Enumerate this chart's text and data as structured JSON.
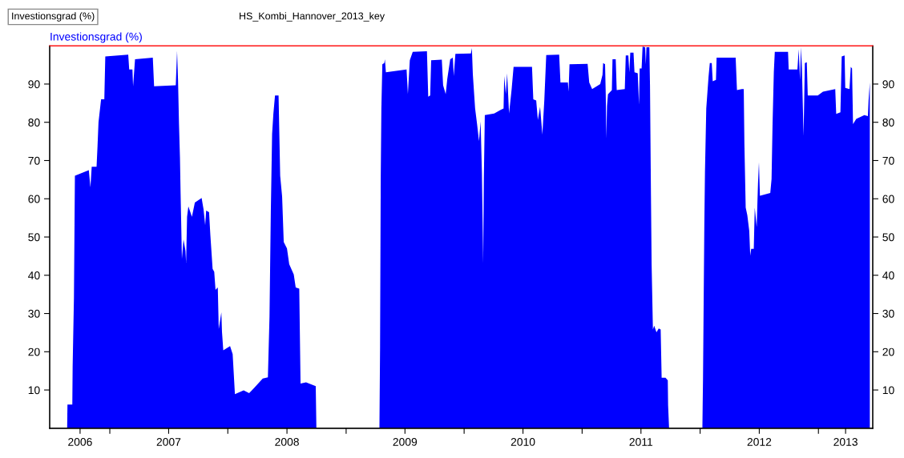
{
  "chart_data": {
    "type": "area",
    "title": "HS_Kombi_Hannover_2013_key",
    "ylabel": "Investionsgrad (%)",
    "annotations": [
      "Investionsgrad (%)"
    ],
    "x": [
      "2006-08-22",
      "2006-08-23",
      "2006-09-07",
      "2006-09-08",
      "2006-09-12",
      "2006-09-15",
      "2006-10-28",
      "2006-11-02",
      "2006-11-06",
      "2006-11-21",
      "2006-11-24",
      "2006-11-27",
      "2006-12-05",
      "2006-12-15",
      "2006-12-18",
      "2007-02-27",
      "2007-03-02",
      "2007-03-12",
      "2007-03-14",
      "2007-03-20",
      "2007-05-14",
      "2007-05-18",
      "2007-07-24",
      "2007-07-28",
      "2007-07-31",
      "2007-08-03",
      "2007-08-06",
      "2007-08-08",
      "2007-08-12",
      "2007-08-17",
      "2007-08-23",
      "2007-08-25",
      "2007-08-28",
      "2007-09-01",
      "2007-09-12",
      "2007-09-21",
      "2007-10-12",
      "2007-10-18",
      "2007-10-23",
      "2007-10-26",
      "2007-11-04",
      "2007-11-08",
      "2007-11-15",
      "2007-11-20",
      "2007-11-24",
      "2007-12-01",
      "2007-12-04",
      "2007-12-12",
      "2007-12-14",
      "2007-12-18",
      "2008-01-08",
      "2008-01-16",
      "2008-01-23",
      "2008-02-19",
      "2008-03-07",
      "2008-03-23",
      "2008-04-18",
      "2008-05-04",
      "2008-05-09",
      "2008-05-13",
      "2008-05-17",
      "2008-05-21",
      "2008-05-26",
      "2008-06-06",
      "2008-06-11",
      "2008-06-17",
      "2008-06-22",
      "2008-07-02",
      "2008-07-09",
      "2008-07-23",
      "2008-07-29",
      "2008-08-09",
      "2008-08-13",
      "2008-08-30",
      "2008-09-29",
      "2008-10-01",
      "2009-04-14",
      "2009-04-16",
      "2009-04-18",
      "2009-04-20",
      "2009-04-23",
      "2009-04-29",
      "2009-05-01",
      "2009-05-04",
      "2009-07-07",
      "2009-07-11",
      "2009-07-17",
      "2009-07-26",
      "2009-09-08",
      "2009-09-12",
      "2009-09-18",
      "2009-09-21",
      "2009-10-24",
      "2009-10-28",
      "2009-11-05",
      "2009-11-10",
      "2009-11-19",
      "2009-11-27",
      "2009-11-30",
      "2009-12-05",
      "2010-01-22",
      "2010-01-25",
      "2010-01-28",
      "2010-02-04",
      "2010-02-10",
      "2010-02-16",
      "2010-02-21",
      "2010-02-25",
      "2010-03-01",
      "2010-03-03",
      "2010-03-06",
      "2010-04-04",
      "2010-04-25",
      "2010-05-03",
      "2010-05-05",
      "2010-05-10",
      "2010-05-14",
      "2010-05-20",
      "2010-05-28",
      "2010-06-03",
      "2010-07-30",
      "2010-08-03",
      "2010-08-12",
      "2010-08-17",
      "2010-08-24",
      "2010-08-31",
      "2010-09-06",
      "2010-09-12",
      "2010-10-22",
      "2010-10-26",
      "2010-11-18",
      "2010-11-20",
      "2010-11-23",
      "2011-01-18",
      "2011-01-23",
      "2011-02-01",
      "2011-02-26",
      "2011-03-05",
      "2011-03-07",
      "2011-03-13",
      "2011-03-15",
      "2011-03-17",
      "2011-03-19",
      "2011-03-22",
      "2011-04-03",
      "2011-04-05",
      "2011-04-15",
      "2011-04-18",
      "2011-05-13",
      "2011-05-16",
      "2011-05-24",
      "2011-05-27",
      "2011-05-30",
      "2011-06-09",
      "2011-06-12",
      "2011-06-22",
      "2011-06-26",
      "2011-06-28",
      "2011-07-04",
      "2011-07-07",
      "2011-07-15",
      "2011-07-17",
      "2011-07-19",
      "2011-07-28",
      "2011-07-30",
      "2011-08-02",
      "2011-08-04",
      "2011-08-08",
      "2011-08-12",
      "2011-08-19",
      "2011-08-26",
      "2011-09-01",
      "2011-09-04",
      "2011-09-16",
      "2011-09-23",
      "2011-09-24",
      "2011-09-27",
      "2012-01-08",
      "2012-01-10",
      "2012-01-14",
      "2012-01-16",
      "2012-01-20",
      "2012-01-27",
      "2012-01-31",
      "2012-02-06",
      "2012-02-09",
      "2012-02-19",
      "2012-02-21",
      "2012-04-20",
      "2012-04-24",
      "2012-05-09",
      "2012-05-15",
      "2012-05-17",
      "2012-05-21",
      "2012-05-26",
      "2012-06-01",
      "2012-06-04",
      "2012-06-07",
      "2012-06-15",
      "2012-06-18",
      "2012-06-24",
      "2012-06-28",
      "2012-07-01",
      "2012-07-04",
      "2012-08-05",
      "2012-08-09",
      "2012-08-12",
      "2012-08-16",
      "2012-08-19",
      "2012-09-29",
      "2012-10-01",
      "2012-10-28",
      "2012-11-01",
      "2012-11-05",
      "2012-11-08",
      "2012-11-11",
      "2012-11-16",
      "2012-11-20",
      "2012-11-26",
      "2012-11-29",
      "2012-12-30",
      "2013-01-15",
      "2013-02-22",
      "2013-02-25",
      "2013-03-10",
      "2013-03-14",
      "2013-03-23",
      "2013-03-25",
      "2013-04-07",
      "2013-04-11",
      "2013-04-15",
      "2013-04-18",
      "2013-04-28",
      "2013-05-23",
      "2013-06-03",
      "2013-06-05",
      "2013-06-09"
    ],
    "series": [
      {
        "color": "#0000ff",
        "values": [
          0,
          6.2,
          6.2,
          16,
          34,
          66,
          67.5,
          63,
          68.4,
          68.4,
          73.8,
          80,
          86,
          86,
          97.2,
          97.7,
          93.8,
          93.8,
          89.4,
          96.5,
          96.9,
          89.4,
          89.7,
          98.7,
          91.1,
          79.6,
          70.8,
          61.3,
          44.3,
          49.4,
          46.4,
          43.3,
          55.3,
          58,
          55.3,
          59,
          60.2,
          57.2,
          53.1,
          56.9,
          56.5,
          50.5,
          41.7,
          40.9,
          36.2,
          36.8,
          25.9,
          30.3,
          25.2,
          20.4,
          21.5,
          19.4,
          8.9,
          9.9,
          9.2,
          10.6,
          13,
          13.3,
          29.3,
          56.5,
          76.9,
          82.3,
          87,
          87,
          66,
          60.6,
          48.7,
          47,
          42.9,
          40.2,
          36.8,
          36.5,
          11.7,
          12,
          11,
          0,
          0,
          21.2,
          65,
          83.6,
          95.2,
          95.5,
          96.5,
          93.1,
          93.8,
          87.4,
          96.2,
          98.4,
          98.6,
          86.7,
          87,
          96.2,
          96.4,
          89.7,
          87.4,
          91.4,
          96.5,
          96.9,
          92.1,
          97.9,
          98,
          99.4,
          92.5,
          83.6,
          79.6,
          75.1,
          80.2,
          67,
          43.2,
          65.3,
          81.9,
          82.3,
          83.3,
          83.6,
          92.1,
          87.4,
          92.8,
          82.3,
          88.7,
          94.5,
          94.5,
          86,
          85.7,
          80.6,
          84,
          76.8,
          85.7,
          97.6,
          97.7,
          90.4,
          90.4,
          88,
          95.2,
          95.3,
          90.4,
          88.7,
          90,
          92.4,
          95.5,
          95.2,
          87.7,
          75.8,
          84.3,
          87.3,
          88.4,
          96.5,
          96.5,
          88.4,
          88.7,
          97.5,
          97.5,
          93.1,
          98.2,
          98.2,
          93.1,
          92.8,
          84.6,
          94.1,
          94.1,
          99.8,
          99.6,
          95.2,
          99.6,
          99.6,
          89.7,
          60.5,
          42.8,
          25.8,
          26.8,
          25.1,
          26.1,
          25.8,
          13.2,
          13.2,
          12.5,
          6,
          0,
          0,
          13.2,
          53,
          66.9,
          83.6,
          91.8,
          95.5,
          95.5,
          90.7,
          91.1,
          96.9,
          96.9,
          88.4,
          88.7,
          88.7,
          74.4,
          57.7,
          55.7,
          51.6,
          45.2,
          46.9,
          46.9,
          57.7,
          52.6,
          63.9,
          69.6,
          60.8,
          61.5,
          65.2,
          79.2,
          93.1,
          98.4,
          98.4,
          93.8,
          93.8,
          99.1,
          91.1,
          99.6,
          94.1,
          76.4,
          95.5,
          95.7,
          87,
          87,
          88,
          88.7,
          82.2,
          82.6,
          97.2,
          97.5,
          89,
          88.7,
          94.5,
          94.1,
          79.5,
          80.9,
          81.9,
          81.6,
          85.6,
          90.4
        ]
      }
    ],
    "xlim": [
      "2006-06-29",
      "2013-06-18"
    ],
    "xticks": [
      {
        "value": "2006-10-01",
        "label": "2006"
      },
      {
        "value": "2007-01-01",
        "label": null
      },
      {
        "value": "2007-07-02",
        "label": "2007"
      },
      {
        "value": "2008-01-01",
        "label": null
      },
      {
        "value": "2008-07-02",
        "label": "2008"
      },
      {
        "value": "2009-01-01",
        "label": null
      },
      {
        "value": "2009-07-02",
        "label": "2009"
      },
      {
        "value": "2010-01-01",
        "label": null
      },
      {
        "value": "2010-07-02",
        "label": "2010"
      },
      {
        "value": "2011-01-01",
        "label": null
      },
      {
        "value": "2011-07-02",
        "label": "2011"
      },
      {
        "value": "2012-01-01",
        "label": null
      },
      {
        "value": "2012-07-02",
        "label": "2012"
      },
      {
        "value": "2013-01-01",
        "label": null
      },
      {
        "value": "2013-03-26",
        "label": "2013"
      }
    ],
    "ylim": [
      0,
      100
    ],
    "yticks": [
      10,
      20,
      30,
      40,
      50,
      60,
      70,
      80,
      90
    ],
    "y2lim": [
      0,
      100
    ],
    "y2ticks": [
      10,
      20,
      30,
      40,
      50,
      60,
      70,
      80,
      90
    ]
  }
}
